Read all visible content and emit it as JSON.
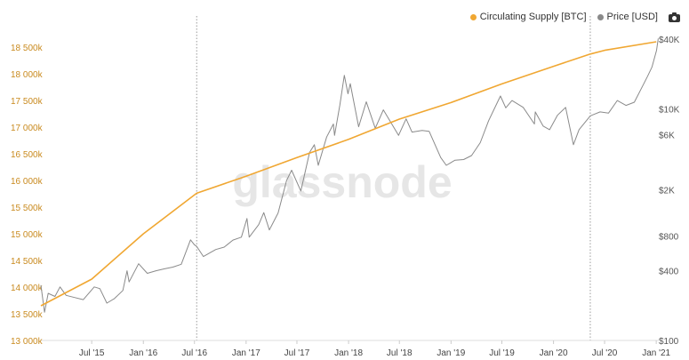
{
  "colors": {
    "supply": "#f0a732",
    "price": "#8a8a8a",
    "grid": "#9a9a9a",
    "left_axis_text": "#c98a1e"
  },
  "legend": [
    {
      "label": "Circulating Supply [BTC]",
      "color": "#f0a732"
    },
    {
      "label": "Price [USD]",
      "color": "#8a8a8a"
    }
  ],
  "watermark": "glassnode",
  "toolbar": {
    "icon": "camera-icon"
  },
  "chart_data": {
    "type": "line",
    "x_range": [
      "2015-01-01",
      "2021-01-10"
    ],
    "x_ticks": [
      {
        "date": "2015-07-01",
        "label": "Jul '15"
      },
      {
        "date": "2016-01-01",
        "label": "Jan '16"
      },
      {
        "date": "2016-07-01",
        "label": "Jul '16"
      },
      {
        "date": "2017-01-01",
        "label": "Jan '17"
      },
      {
        "date": "2017-07-01",
        "label": "Jul '17"
      },
      {
        "date": "2018-01-01",
        "label": "Jan '18"
      },
      {
        "date": "2018-07-01",
        "label": "Jul '18"
      },
      {
        "date": "2019-01-01",
        "label": "Jan '19"
      },
      {
        "date": "2019-07-01",
        "label": "Jul '19"
      },
      {
        "date": "2020-01-01",
        "label": "Jan '20"
      },
      {
        "date": "2020-07-01",
        "label": "Jul '20"
      },
      {
        "date": "2021-01-01",
        "label": "Jan '21"
      }
    ],
    "vertical_markers": [
      "2016-07-09",
      "2020-05-11"
    ],
    "y_left": {
      "range": [
        13000000,
        18650000
      ],
      "ticks": [
        {
          "value": 13000000,
          "label": "13 000k"
        },
        {
          "value": 13500000,
          "label": "13 500k"
        },
        {
          "value": 14000000,
          "label": "14 000k"
        },
        {
          "value": 14500000,
          "label": "14 500k"
        },
        {
          "value": 15000000,
          "label": "15 000k"
        },
        {
          "value": 15500000,
          "label": "15 500k"
        },
        {
          "value": 16000000,
          "label": "16 000k"
        },
        {
          "value": 16500000,
          "label": "16 500k"
        },
        {
          "value": 17000000,
          "label": "17 000k"
        },
        {
          "value": 17500000,
          "label": "17 500k"
        },
        {
          "value": 18000000,
          "label": "18 000k"
        },
        {
          "value": 18500000,
          "label": "18 500k"
        }
      ]
    },
    "y_right": {
      "scale": "log",
      "range": [
        100,
        40000
      ],
      "ticks": [
        {
          "value": 100,
          "label": "$100"
        },
        {
          "value": 400,
          "label": "$400"
        },
        {
          "value": 800,
          "label": "$800"
        },
        {
          "value": 2000,
          "label": "$2K"
        },
        {
          "value": 6000,
          "label": "$6K"
        },
        {
          "value": 10000,
          "label": "$10K"
        },
        {
          "value": 40000,
          "label": "$40K"
        }
      ]
    },
    "series": [
      {
        "name": "Circulating Supply [BTC]",
        "axis": "left",
        "points": [
          [
            "2015-01-01",
            13650000
          ],
          [
            "2015-07-01",
            14150000
          ],
          [
            "2016-01-01",
            15000000
          ],
          [
            "2016-07-09",
            15760000
          ],
          [
            "2017-01-01",
            16080000
          ],
          [
            "2017-07-01",
            16430000
          ],
          [
            "2018-01-01",
            16770000
          ],
          [
            "2018-07-01",
            17150000
          ],
          [
            "2019-01-01",
            17460000
          ],
          [
            "2019-07-01",
            17810000
          ],
          [
            "2020-01-01",
            18140000
          ],
          [
            "2020-05-11",
            18370000
          ],
          [
            "2020-07-01",
            18440000
          ],
          [
            "2021-01-01",
            18600000
          ]
        ]
      },
      {
        "name": "Price [USD]",
        "axis": "right",
        "points": [
          [
            "2015-01-01",
            300
          ],
          [
            "2015-01-14",
            175
          ],
          [
            "2015-01-27",
            255
          ],
          [
            "2015-02-20",
            240
          ],
          [
            "2015-03-10",
            290
          ],
          [
            "2015-04-01",
            245
          ],
          [
            "2015-05-01",
            235
          ],
          [
            "2015-06-01",
            225
          ],
          [
            "2015-07-10",
            290
          ],
          [
            "2015-07-30",
            280
          ],
          [
            "2015-08-24",
            210
          ],
          [
            "2015-09-20",
            230
          ],
          [
            "2015-10-20",
            270
          ],
          [
            "2015-11-04",
            400
          ],
          [
            "2015-11-11",
            320
          ],
          [
            "2015-12-15",
            460
          ],
          [
            "2016-01-15",
            380
          ],
          [
            "2016-02-15",
            400
          ],
          [
            "2016-03-15",
            415
          ],
          [
            "2016-04-15",
            430
          ],
          [
            "2016-05-15",
            455
          ],
          [
            "2016-06-17",
            740
          ],
          [
            "2016-07-01",
            670
          ],
          [
            "2016-07-09",
            650
          ],
          [
            "2016-08-02",
            530
          ],
          [
            "2016-09-15",
            610
          ],
          [
            "2016-10-15",
            640
          ],
          [
            "2016-11-15",
            735
          ],
          [
            "2016-12-15",
            780
          ],
          [
            "2017-01-04",
            1130
          ],
          [
            "2017-01-12",
            780
          ],
          [
            "2017-02-15",
            1000
          ],
          [
            "2017-03-05",
            1270
          ],
          [
            "2017-03-25",
            900
          ],
          [
            "2017-04-25",
            1260
          ],
          [
            "2017-05-25",
            2400
          ],
          [
            "2017-06-12",
            2950
          ],
          [
            "2017-07-15",
            1950
          ],
          [
            "2017-08-15",
            4200
          ],
          [
            "2017-09-01",
            4900
          ],
          [
            "2017-09-15",
            3250
          ],
          [
            "2017-10-15",
            5700
          ],
          [
            "2017-11-08",
            7400
          ],
          [
            "2017-11-12",
            5900
          ],
          [
            "2017-12-01",
            10800
          ],
          [
            "2017-12-17",
            19500
          ],
          [
            "2017-12-30",
            13500
          ],
          [
            "2018-01-07",
            16500
          ],
          [
            "2018-02-06",
            7000
          ],
          [
            "2018-03-05",
            11500
          ],
          [
            "2018-04-06",
            6800
          ],
          [
            "2018-05-05",
            9800
          ],
          [
            "2018-06-28",
            5900
          ],
          [
            "2018-07-25",
            8200
          ],
          [
            "2018-08-15",
            6300
          ],
          [
            "2018-09-20",
            6500
          ],
          [
            "2018-10-15",
            6400
          ],
          [
            "2018-11-25",
            3800
          ],
          [
            "2018-12-15",
            3250
          ],
          [
            "2019-01-15",
            3600
          ],
          [
            "2019-02-15",
            3650
          ],
          [
            "2019-03-15",
            3950
          ],
          [
            "2019-04-15",
            5100
          ],
          [
            "2019-05-15",
            7900
          ],
          [
            "2019-06-26",
            12900
          ],
          [
            "2019-07-15",
            10200
          ],
          [
            "2019-08-06",
            11800
          ],
          [
            "2019-09-15",
            10300
          ],
          [
            "2019-10-25",
            7400
          ],
          [
            "2019-10-28",
            9400
          ],
          [
            "2019-11-25",
            7100
          ],
          [
            "2019-12-18",
            6600
          ],
          [
            "2020-01-15",
            8800
          ],
          [
            "2020-02-13",
            10300
          ],
          [
            "2020-03-12",
            4900
          ],
          [
            "2020-04-01",
            6600
          ],
          [
            "2020-05-11",
            8700
          ],
          [
            "2020-06-15",
            9400
          ],
          [
            "2020-07-15",
            9200
          ],
          [
            "2020-08-15",
            11800
          ],
          [
            "2020-09-15",
            10700
          ],
          [
            "2020-10-15",
            11400
          ],
          [
            "2020-11-15",
            16000
          ],
          [
            "2020-12-01",
            19100
          ],
          [
            "2020-12-17",
            23000
          ],
          [
            "2021-01-02",
            32000
          ],
          [
            "2021-01-08",
            40500
          ]
        ]
      }
    ]
  }
}
